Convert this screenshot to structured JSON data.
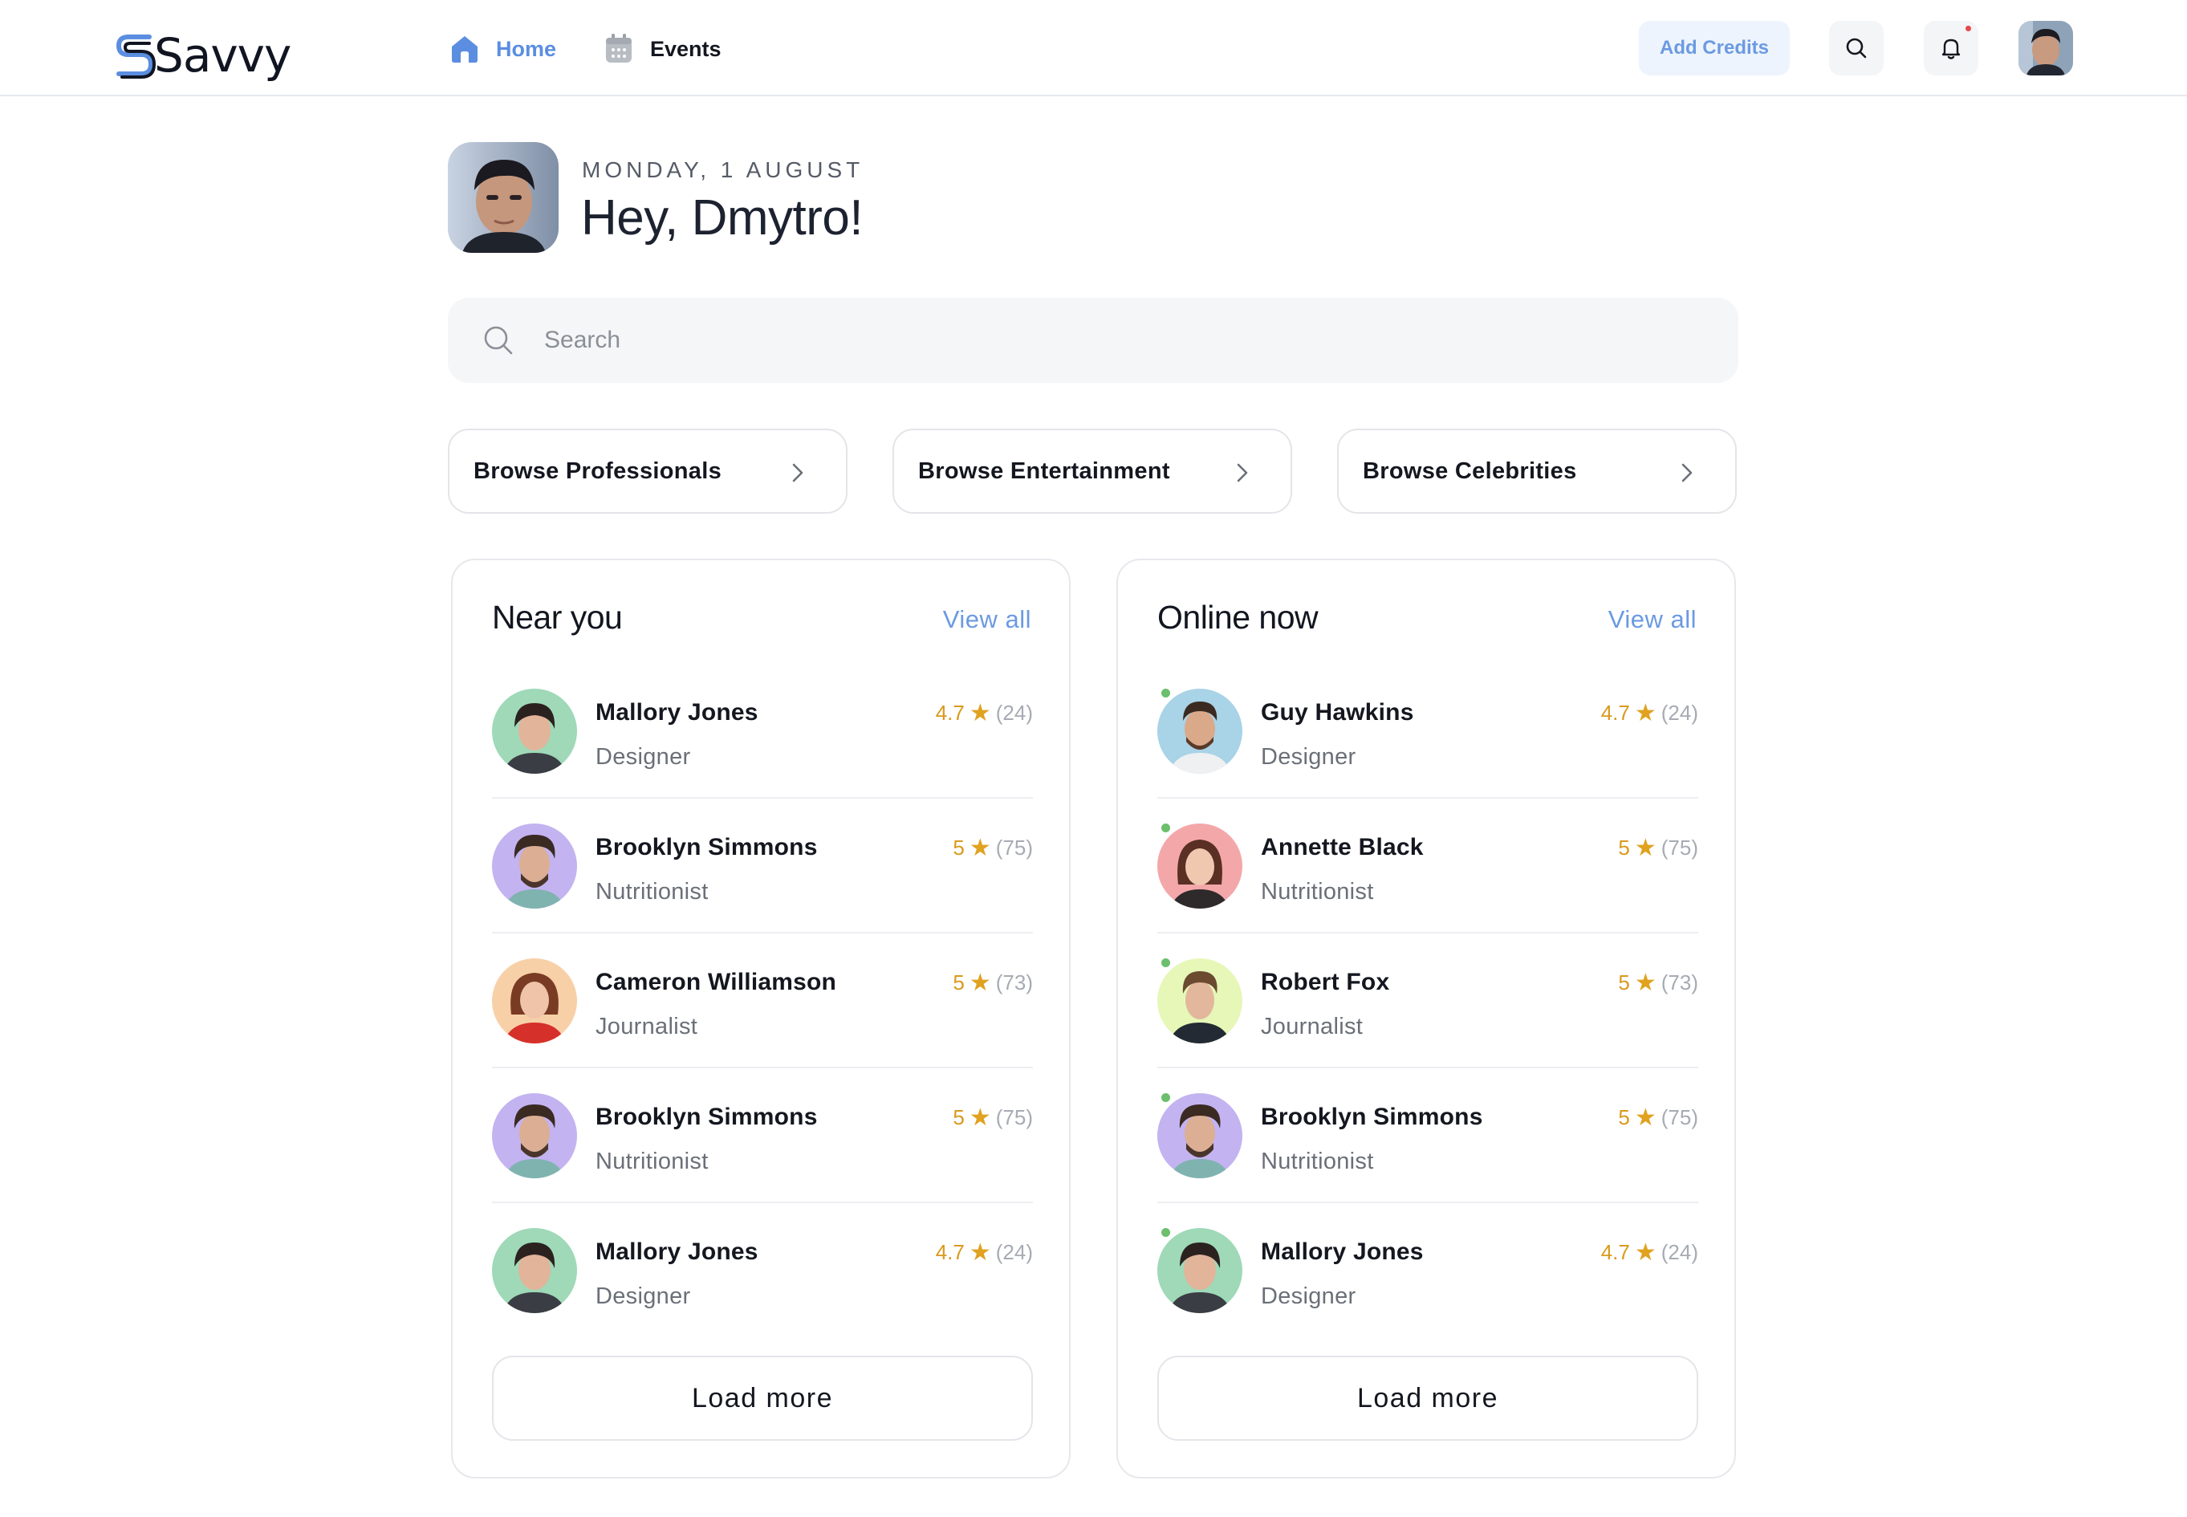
{
  "app": {
    "brand": "Savvy"
  },
  "nav": {
    "home": "Home",
    "events": "Events"
  },
  "header_actions": {
    "add_credits": "Add Credits"
  },
  "greeting": {
    "date": "MONDAY, 1 AUGUST",
    "title": "Hey, Dmytro!"
  },
  "search": {
    "placeholder": "Search",
    "value": ""
  },
  "browse": [
    {
      "label": "Browse Professionals"
    },
    {
      "label": "Browse Entertainment"
    },
    {
      "label": "Browse Celebrities"
    }
  ],
  "near_you": {
    "title": "Near you",
    "view_all": "View all",
    "load_more": "Load more",
    "people": [
      {
        "name": "Mallory Jones",
        "role": "Designer",
        "score": "4.7",
        "count": "(24)"
      },
      {
        "name": "Brooklyn Simmons",
        "role": "Nutritionist",
        "score": "5",
        "count": "(75)"
      },
      {
        "name": "Cameron Williamson",
        "role": "Journalist",
        "score": "5",
        "count": "(73)"
      },
      {
        "name": "Brooklyn Simmons",
        "role": "Nutritionist",
        "score": "5",
        "count": "(75)"
      },
      {
        "name": "Mallory Jones",
        "role": "Designer",
        "score": "4.7",
        "count": "(24)"
      }
    ]
  },
  "online_now": {
    "title": "Online now",
    "view_all": "View all",
    "load_more": "Load more",
    "people": [
      {
        "name": "Guy Hawkins",
        "role": "Designer",
        "score": "4.7",
        "count": "(24)"
      },
      {
        "name": "Annette Black",
        "role": "Nutritionist",
        "score": "5",
        "count": "(75)"
      },
      {
        "name": "Robert Fox",
        "role": "Journalist",
        "score": "5",
        "count": "(73)"
      },
      {
        "name": "Brooklyn Simmons",
        "role": "Nutritionist",
        "score": "5",
        "count": "(75)"
      },
      {
        "name": "Mallory Jones",
        "role": "Designer",
        "score": "4.7",
        "count": "(24)"
      }
    ]
  },
  "colors": {
    "accent": "#5b8ee0",
    "rating": "#d99a1e",
    "online": "#6cbf6c",
    "notification": "#e5484d"
  },
  "icons": {
    "home": "home-icon",
    "events": "calendar-icon",
    "search": "search-icon",
    "notifications": "bell-icon",
    "chevron": "chevron-right-icon",
    "rating": "star-icon"
  }
}
